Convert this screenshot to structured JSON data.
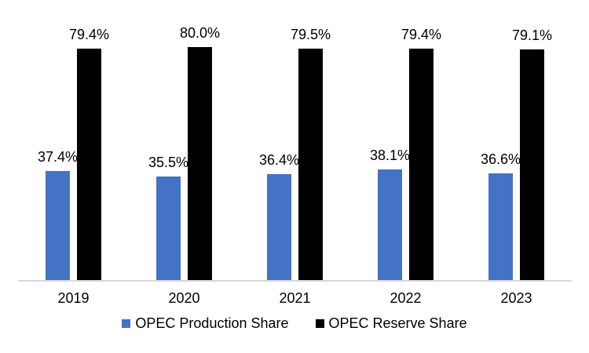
{
  "chart_data": {
    "type": "bar",
    "title": "",
    "xlabel": "",
    "ylabel": "",
    "categories": [
      "2019",
      "2020",
      "2021",
      "2022",
      "2023"
    ],
    "series": [
      {
        "name": "OPEC Production Share",
        "color": "#4472C4",
        "values": [
          37.4,
          35.5,
          36.4,
          38.1,
          36.6
        ],
        "labels": [
          "37.4%",
          "35.5%",
          "36.4%",
          "38.1%",
          "36.6%"
        ]
      },
      {
        "name": "OPEC Reserve Share",
        "color": "#000000",
        "values": [
          79.4,
          80.0,
          79.5,
          79.4,
          79.1
        ],
        "labels": [
          "79.4%",
          "80.0%",
          "79.5%",
          "79.4%",
          "79.1%"
        ]
      }
    ],
    "ylim": [
      0,
      96
    ],
    "grid": false,
    "y_axis_visible": false,
    "legend_position": "bottom",
    "axis_line_color": "#D9D9D9",
    "value_label_color": "#000000",
    "background_color": "#FFFFFF"
  }
}
